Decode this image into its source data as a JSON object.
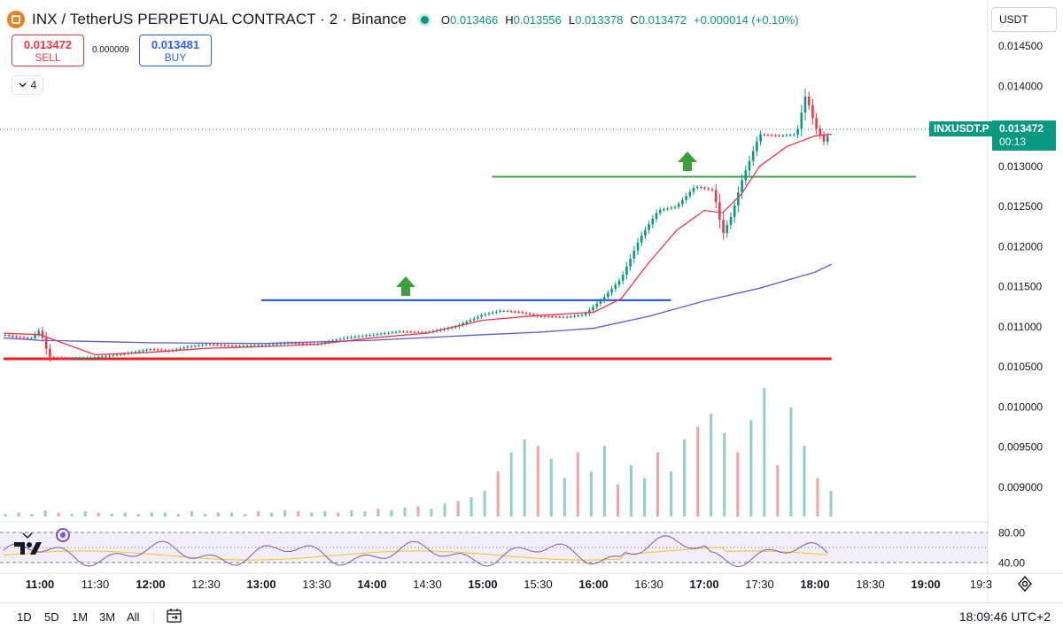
{
  "header": {
    "title": "INX / TetherUS PERPETUAL CONTRACT · 2 · Binance",
    "ohlc": [
      {
        "k": "O",
        "v": "0.013466"
      },
      {
        "k": "H",
        "v": "0.013556"
      },
      {
        "k": "L",
        "v": "0.013378"
      },
      {
        "k": "C",
        "v": "0.013472"
      }
    ],
    "change": "+0.000014 (+0.10%)"
  },
  "trade": {
    "sell_price": "0.013472",
    "sell_label": "SELL",
    "buy_price": "0.013481",
    "buy_label": "BUY",
    "spread": "0.000009"
  },
  "collapse_count": "4",
  "currency": "USDT",
  "price_tag": {
    "symbol": "INXUSDT.P",
    "last": "0.013472",
    "countdown": "00:13"
  },
  "range_buttons": [
    "1D",
    "5D",
    "1M",
    "3M",
    "All"
  ],
  "clock": "18:09:46 UTC+2",
  "colors": {
    "up": "#089981",
    "down": "#f23645",
    "ema_fast": "#f23645",
    "ema_slow": "#5b5bd6",
    "hline_blue": "#1e4fd6",
    "hline_green": "#43a047",
    "hline_red": "#f21d1d",
    "rsi": "#7e57c2",
    "rsi_ma": "#f5c518"
  },
  "chart_data": {
    "type": "candlestick",
    "timeframe": "2m",
    "price_axis": {
      "ticks": [
        "0.014500",
        "0.014000",
        "0.013500",
        "0.013000",
        "0.012500",
        "0.012000",
        "0.011500",
        "0.011000",
        "0.010500",
        "0.010000",
        "0.009500",
        "0.009000"
      ],
      "range": [
        0.00875,
        0.01465
      ]
    },
    "time_axis": {
      "ticks": [
        "11:00",
        "11:30",
        "12:00",
        "12:30",
        "13:00",
        "13:30",
        "14:00",
        "14:30",
        "15:00",
        "15:30",
        "16:00",
        "16:30",
        "17:00",
        "17:30",
        "18:00",
        "18:30",
        "19:00",
        "19:3"
      ]
    },
    "price_series": [
      {
        "t": "10:32",
        "p": 0.0109
      },
      {
        "t": "10:45",
        "p": 0.01088
      },
      {
        "t": "10:55",
        "p": 0.01085
      },
      {
        "t": "11:00",
        "p": 0.01096
      },
      {
        "t": "11:05",
        "p": 0.01062
      },
      {
        "t": "11:15",
        "p": 0.0106
      },
      {
        "t": "11:30",
        "p": 0.01062
      },
      {
        "t": "11:45",
        "p": 0.01066
      },
      {
        "t": "12:00",
        "p": 0.01072
      },
      {
        "t": "12:10",
        "p": 0.0107
      },
      {
        "t": "12:20",
        "p": 0.01075
      },
      {
        "t": "12:30",
        "p": 0.01078
      },
      {
        "t": "12:45",
        "p": 0.01076
      },
      {
        "t": "13:00",
        "p": 0.01077
      },
      {
        "t": "13:15",
        "p": 0.0108
      },
      {
        "t": "13:30",
        "p": 0.01078
      },
      {
        "t": "13:45",
        "p": 0.01086
      },
      {
        "t": "14:00",
        "p": 0.0109
      },
      {
        "t": "14:15",
        "p": 0.01094
      },
      {
        "t": "14:30",
        "p": 0.01093
      },
      {
        "t": "14:45",
        "p": 0.011
      },
      {
        "t": "15:00",
        "p": 0.01115
      },
      {
        "t": "15:10",
        "p": 0.0112
      },
      {
        "t": "15:20",
        "p": 0.01118
      },
      {
        "t": "15:30",
        "p": 0.01113
      },
      {
        "t": "15:45",
        "p": 0.01112
      },
      {
        "t": "15:55",
        "p": 0.01115
      },
      {
        "t": "16:05",
        "p": 0.01135
      },
      {
        "t": "16:15",
        "p": 0.0116
      },
      {
        "t": "16:25",
        "p": 0.0121
      },
      {
        "t": "16:35",
        "p": 0.01245
      },
      {
        "t": "16:45",
        "p": 0.0125
      },
      {
        "t": "16:55",
        "p": 0.01275
      },
      {
        "t": "17:05",
        "p": 0.0127
      },
      {
        "t": "17:10",
        "p": 0.01215
      },
      {
        "t": "17:15",
        "p": 0.0124
      },
      {
        "t": "17:20",
        "p": 0.0128
      },
      {
        "t": "17:25",
        "p": 0.0131
      },
      {
        "t": "17:30",
        "p": 0.0134
      },
      {
        "t": "17:40",
        "p": 0.01338
      },
      {
        "t": "17:50",
        "p": 0.0134
      },
      {
        "t": "17:55",
        "p": 0.0139
      },
      {
        "t": "18:00",
        "p": 0.0135
      },
      {
        "t": "18:05",
        "p": 0.0133
      },
      {
        "t": "18:09",
        "p": 0.013472
      }
    ],
    "ema_fast": [
      {
        "t": "10:32",
        "p": 0.01092
      },
      {
        "t": "11:00",
        "p": 0.0109
      },
      {
        "t": "11:30",
        "p": 0.01065
      },
      {
        "t": "12:00",
        "p": 0.01068
      },
      {
        "t": "12:30",
        "p": 0.01073
      },
      {
        "t": "13:00",
        "p": 0.01075
      },
      {
        "t": "13:30",
        "p": 0.01078
      },
      {
        "t": "14:00",
        "p": 0.01086
      },
      {
        "t": "14:30",
        "p": 0.01092
      },
      {
        "t": "15:00",
        "p": 0.01108
      },
      {
        "t": "15:30",
        "p": 0.01114
      },
      {
        "t": "16:00",
        "p": 0.01118
      },
      {
        "t": "16:15",
        "p": 0.01135
      },
      {
        "t": "16:30",
        "p": 0.0118
      },
      {
        "t": "16:45",
        "p": 0.0122
      },
      {
        "t": "17:00",
        "p": 0.01245
      },
      {
        "t": "17:10",
        "p": 0.01242
      },
      {
        "t": "17:20",
        "p": 0.01265
      },
      {
        "t": "17:30",
        "p": 0.013
      },
      {
        "t": "17:45",
        "p": 0.01325
      },
      {
        "t": "18:00",
        "p": 0.01338
      },
      {
        "t": "18:09",
        "p": 0.0134
      }
    ],
    "ema_slow": [
      {
        "t": "10:32",
        "p": 0.01086
      },
      {
        "t": "11:00",
        "p": 0.01083
      },
      {
        "t": "12:00",
        "p": 0.0108
      },
      {
        "t": "13:00",
        "p": 0.01079
      },
      {
        "t": "14:00",
        "p": 0.01083
      },
      {
        "t": "15:00",
        "p": 0.0109
      },
      {
        "t": "15:30",
        "p": 0.01093
      },
      {
        "t": "16:00",
        "p": 0.01098
      },
      {
        "t": "16:30",
        "p": 0.01113
      },
      {
        "t": "17:00",
        "p": 0.01132
      },
      {
        "t": "17:30",
        "p": 0.01148
      },
      {
        "t": "18:00",
        "p": 0.01168
      },
      {
        "t": "18:09",
        "p": 0.01178
      }
    ],
    "horizontal_lines": [
      {
        "name": "resistance-1",
        "price": 0.01133,
        "from": "13:00",
        "to": "16:42",
        "color": "blue"
      },
      {
        "name": "resistance-2",
        "price": 0.01287,
        "from": "15:05",
        "to": "19:00",
        "color": "green"
      },
      {
        "name": "support",
        "price": 0.0106,
        "from": "10:32",
        "to": "18:09",
        "color": "red"
      }
    ],
    "volume_heights": [
      0.02,
      0.03,
      0.02,
      0.05,
      0.03,
      0.02,
      0.04,
      0.03,
      0.02,
      0.03,
      0.02,
      0.03,
      0.03,
      0.02,
      0.04,
      0.02,
      0.03,
      0.03,
      0.02,
      0.04,
      0.03,
      0.05,
      0.04,
      0.03,
      0.04,
      0.03,
      0.05,
      0.04,
      0.06,
      0.05,
      0.07,
      0.08,
      0.06,
      0.1,
      0.12,
      0.15,
      0.2,
      0.35,
      0.5,
      0.6,
      0.55,
      0.45,
      0.3,
      0.5,
      0.35,
      0.55,
      0.25,
      0.4,
      0.3,
      0.5,
      0.35,
      0.6,
      0.7,
      0.8,
      0.65,
      0.5,
      0.75,
      1.0,
      0.4,
      0.85,
      0.55,
      0.3,
      0.2
    ],
    "rsi_axis": {
      "ticks": [
        "80.00",
        "40.00"
      ],
      "range": [
        30,
        90
      ],
      "bands": [
        70,
        30
      ]
    }
  }
}
